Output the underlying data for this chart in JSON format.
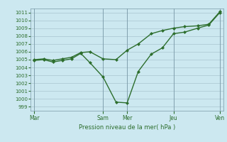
{
  "xlabel": "Pression niveau de la mer( hPa )",
  "bg_color": "#cce8f0",
  "plot_bg_color": "#cce8f0",
  "grid_color": "#a0bcc8",
  "line_color": "#2d6e2d",
  "ylim": [
    998.5,
    1011.5
  ],
  "yticks": [
    999,
    1000,
    1001,
    1002,
    1003,
    1004,
    1005,
    1006,
    1007,
    1008,
    1009,
    1010,
    1011
  ],
  "xtick_labels": [
    "Mar",
    "Sam",
    "Mer",
    "Jeu",
    "Ven"
  ],
  "xtick_positions": [
    0,
    37,
    50,
    75,
    100
  ],
  "line1_x": [
    0,
    5,
    10,
    15,
    20,
    25,
    30,
    37,
    44,
    50,
    56,
    63,
    69,
    75,
    81,
    88,
    94,
    100
  ],
  "line1_y": [
    1005.0,
    1005.1,
    1004.9,
    1005.1,
    1005.3,
    1005.9,
    1006.0,
    1005.1,
    1005.0,
    1006.2,
    1007.0,
    1008.3,
    1008.7,
    1009.0,
    1009.2,
    1009.3,
    1009.5,
    1011.1
  ],
  "line2_x": [
    0,
    5,
    10,
    15,
    20,
    25,
    30,
    37,
    44,
    50,
    56,
    63,
    69,
    75,
    81,
    88,
    94,
    100
  ],
  "line2_y": [
    1004.9,
    1005.0,
    1004.7,
    1004.9,
    1005.1,
    1005.8,
    1004.6,
    1002.8,
    999.6,
    999.5,
    1003.5,
    1005.7,
    1006.5,
    1008.3,
    1008.5,
    1009.0,
    1009.4,
    1011.0
  ],
  "marker": "D",
  "markersize": 2.0,
  "linewidth": 1.0,
  "xlim": [
    -2,
    102
  ]
}
